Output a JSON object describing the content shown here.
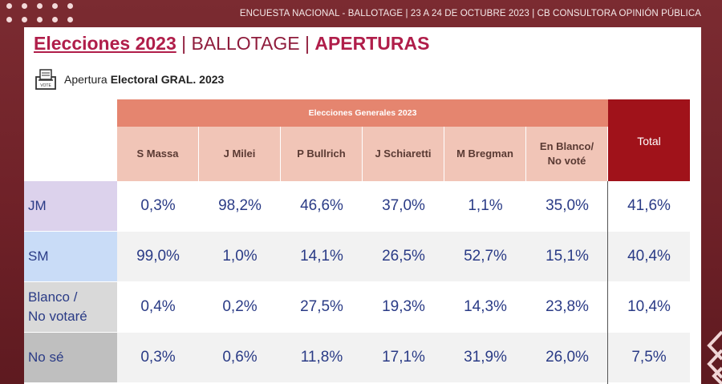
{
  "header": {
    "text": "ENCUESTA NACIONAL - BALLOTAGE  | 23 A 24 DE OCTUBRE 2023 | CB CONSULTORA OPINIÓN PÚBLICA"
  },
  "title": {
    "part1": "Elecciones 2023",
    "part2": " | BALLOTAGE | ",
    "part3": "APERTURAS"
  },
  "subtitle": {
    "prefix": "Apertura",
    "bold": "Electoral GRAL. 2023",
    "icon": "ballot-box-icon"
  },
  "table": {
    "group_header": "Elecciones Generales 2023",
    "total_header": "Total",
    "columns": [
      "S Massa",
      "J Milei",
      "P Bullrich",
      "J Schiaretti",
      "M Bregman",
      "En Blanco/\nNo voté"
    ],
    "rows": [
      {
        "label": "JM",
        "values": [
          "0,3%",
          "98,2%",
          "46,6%",
          "37,0%",
          "1,1%",
          "35,0%"
        ],
        "total": "41,6%"
      },
      {
        "label": "SM",
        "values": [
          "99,0%",
          "1,0%",
          "14,1%",
          "26,5%",
          "52,7%",
          "15,1%"
        ],
        "total": "40,4%"
      },
      {
        "label": "Blanco /\nNo votaré",
        "values": [
          "0,4%",
          "0,2%",
          "27,5%",
          "19,3%",
          "14,3%",
          "23,8%"
        ],
        "total": "10,4%"
      },
      {
        "label": "No sé",
        "values": [
          "0,3%",
          "0,6%",
          "11,8%",
          "17,1%",
          "31,9%",
          "26,0%"
        ],
        "total": "7,5%"
      }
    ]
  },
  "colors": {
    "row_label_bg": [
      "#dcd2ec",
      "#c9dcf7",
      "#d9d9d9",
      "#bfbfbf"
    ],
    "row_bg": [
      "#ffffff",
      "#f2f2f2",
      "#ffffff",
      "#f2f2f2"
    ]
  }
}
